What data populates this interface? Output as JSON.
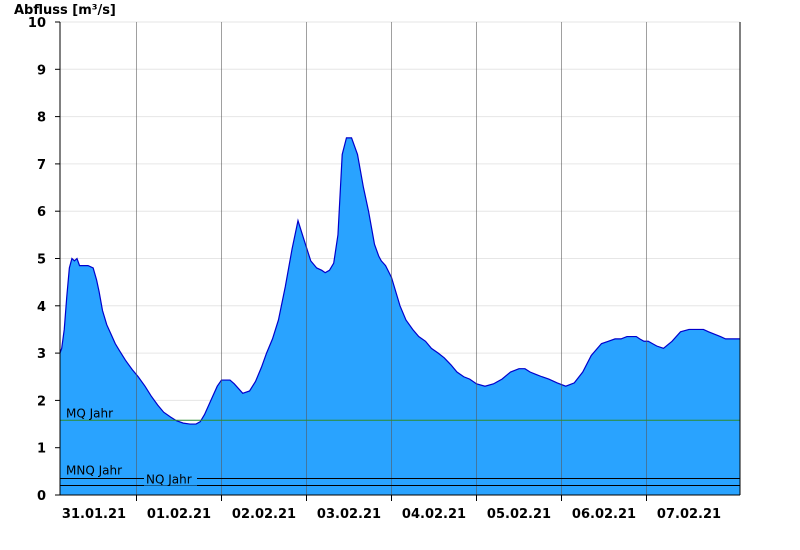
{
  "chart_data": {
    "type": "area",
    "title": "",
    "ylabel": "Abfluss [m³/s]",
    "xlabel": "",
    "ylim": [
      0,
      10
    ],
    "yticks": [
      0,
      1,
      2,
      3,
      4,
      5,
      6,
      7,
      8,
      9,
      10
    ],
    "x_unit": "days since 30.01.21 00:00",
    "xlim": [
      0.6,
      8.6
    ],
    "xtick_labels": [
      {
        "x": 1.0,
        "label": "31.01.21"
      },
      {
        "x": 2.0,
        "label": "01.02.21"
      },
      {
        "x": 3.0,
        "label": "02.02.21"
      },
      {
        "x": 4.0,
        "label": "03.02.21"
      },
      {
        "x": 5.0,
        "label": "04.02.21"
      },
      {
        "x": 6.0,
        "label": "05.02.21"
      },
      {
        "x": 7.0,
        "label": "06.02.21"
      },
      {
        "x": 8.0,
        "label": "07.02.21"
      }
    ],
    "day_boundaries": [
      1.5,
      2.5,
      3.5,
      4.5,
      5.5,
      6.5,
      7.5
    ],
    "grid": true,
    "fill_color": "#29a3ff",
    "line_color": "#0000cc",
    "series": [
      {
        "name": "Abfluss",
        "x": [
          0.6,
          0.62,
          0.65,
          0.68,
          0.71,
          0.74,
          0.77,
          0.8,
          0.83,
          0.87,
          0.93,
          0.99,
          1.03,
          1.06,
          1.1,
          1.15,
          1.2,
          1.25,
          1.3,
          1.37,
          1.45,
          1.52,
          1.6,
          1.67,
          1.75,
          1.82,
          1.9,
          1.97,
          2.05,
          2.13,
          2.2,
          2.25,
          2.3,
          2.35,
          2.4,
          2.45,
          2.5,
          2.55,
          2.6,
          2.65,
          2.7,
          2.75,
          2.83,
          2.9,
          2.97,
          3.03,
          3.1,
          3.17,
          3.25,
          3.33,
          3.4,
          3.47,
          3.55,
          3.62,
          3.68,
          3.72,
          3.77,
          3.82,
          3.87,
          3.92,
          3.97,
          4.03,
          4.1,
          4.17,
          4.23,
          4.27,
          4.3,
          4.35,
          4.38,
          4.43,
          4.5,
          4.55,
          4.6,
          4.67,
          4.75,
          4.82,
          4.9,
          4.97,
          5.05,
          5.12,
          5.2,
          5.27,
          5.35,
          5.42,
          5.5,
          5.6,
          5.7,
          5.8,
          5.9,
          6.0,
          6.07,
          6.13,
          6.2,
          6.27,
          6.35,
          6.45,
          6.55,
          6.65,
          6.75,
          6.85,
          6.97,
          7.05,
          7.13,
          7.2,
          7.27,
          7.33,
          7.38,
          7.42,
          7.47,
          7.52,
          7.57,
          7.62,
          7.7,
          7.8,
          7.9,
          8.0,
          8.1,
          8.17,
          8.23,
          8.3,
          8.37,
          8.43,
          8.5,
          8.55,
          8.6
        ],
        "y": [
          3.0,
          3.1,
          3.5,
          4.2,
          4.8,
          5.0,
          4.95,
          5.0,
          4.85,
          4.85,
          4.85,
          4.8,
          4.55,
          4.3,
          3.9,
          3.6,
          3.4,
          3.2,
          3.05,
          2.85,
          2.65,
          2.5,
          2.3,
          2.1,
          1.9,
          1.75,
          1.65,
          1.57,
          1.52,
          1.5,
          1.5,
          1.55,
          1.7,
          1.9,
          2.1,
          2.3,
          2.43,
          2.43,
          2.43,
          2.35,
          2.25,
          2.15,
          2.2,
          2.4,
          2.7,
          3.0,
          3.3,
          3.7,
          4.4,
          5.2,
          5.8,
          5.4,
          4.95,
          4.8,
          4.75,
          4.7,
          4.75,
          4.9,
          5.5,
          7.2,
          7.55,
          7.55,
          7.2,
          6.5,
          6.0,
          5.6,
          5.3,
          5.05,
          4.95,
          4.85,
          4.6,
          4.3,
          4.0,
          3.7,
          3.5,
          3.35,
          3.25,
          3.1,
          3.0,
          2.9,
          2.75,
          2.6,
          2.5,
          2.45,
          2.35,
          2.3,
          2.35,
          2.45,
          2.6,
          2.67,
          2.67,
          2.6,
          2.55,
          2.5,
          2.45,
          2.37,
          2.3,
          2.37,
          2.6,
          2.95,
          3.2,
          3.25,
          3.3,
          3.3,
          3.35,
          3.35,
          3.35,
          3.3,
          3.25,
          3.25,
          3.2,
          3.15,
          3.1,
          3.25,
          3.45,
          3.5,
          3.5,
          3.5,
          3.45,
          3.4,
          3.35,
          3.3,
          3.3,
          3.3,
          3.3
        ]
      }
    ],
    "reference_lines": [
      {
        "label": "MQ Jahr",
        "value": 1.58,
        "color": "#2e8b2e"
      },
      {
        "label": "MNQ Jahr",
        "value": 0.35,
        "color": "#000000"
      },
      {
        "label": "NQ Jahr",
        "value": 0.2,
        "color": "#000000"
      }
    ]
  }
}
